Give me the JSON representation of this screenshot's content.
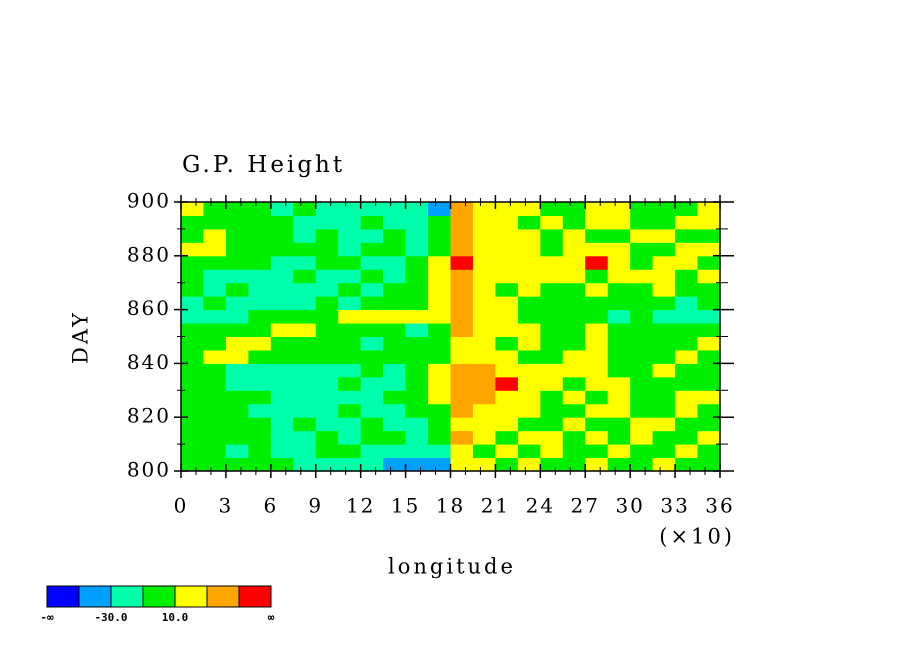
{
  "chart_data": {
    "type": "heatmap",
    "title": "G.P. Height",
    "xlabel": "longitude",
    "ylabel": "DAY",
    "x_scale_note": "(×10)",
    "xlim": [
      0,
      360
    ],
    "ylim": [
      800,
      900
    ],
    "xticks": [
      {
        "value": 0,
        "label": "0"
      },
      {
        "value": 30,
        "label": "3"
      },
      {
        "value": 60,
        "label": "6"
      },
      {
        "value": 90,
        "label": "9"
      },
      {
        "value": 120,
        "label": "12"
      },
      {
        "value": 150,
        "label": "15"
      },
      {
        "value": 180,
        "label": "18"
      },
      {
        "value": 210,
        "label": "21"
      },
      {
        "value": 240,
        "label": "24"
      },
      {
        "value": 270,
        "label": "27"
      },
      {
        "value": 300,
        "label": "30"
      },
      {
        "value": 330,
        "label": "33"
      },
      {
        "value": 360,
        "label": "36"
      }
    ],
    "yticks": [
      800,
      820,
      840,
      860,
      880,
      900
    ],
    "x_bins": [
      0,
      15,
      30,
      45,
      60,
      75,
      90,
      105,
      120,
      135,
      150,
      165,
      180,
      195,
      210,
      225,
      240,
      255,
      270,
      285,
      300,
      315,
      330,
      345,
      360
    ],
    "y_bins": [
      800,
      805,
      810,
      815,
      820,
      825,
      830,
      835,
      840,
      845,
      850,
      855,
      860,
      865,
      870,
      875,
      880,
      885,
      890,
      895,
      900
    ],
    "z": [
      [
        5,
        0,
        -5,
        0,
        -10,
        -15,
        -20,
        -25,
        -30,
        -40,
        -45,
        -35,
        15,
        10,
        5,
        20,
        0,
        5,
        15,
        0,
        5,
        10,
        0,
        5
      ],
      [
        0,
        -5,
        -15,
        -10,
        -20,
        -15,
        -5,
        -10,
        -20,
        -25,
        -30,
        -20,
        25,
        5,
        15,
        0,
        20,
        5,
        0,
        15,
        5,
        0,
        10,
        5
      ],
      [
        -5,
        -10,
        -5,
        0,
        -15,
        -20,
        -10,
        -15,
        -5,
        -10,
        -20,
        -5,
        30,
        15,
        5,
        20,
        10,
        0,
        15,
        5,
        20,
        0,
        5,
        15
      ],
      [
        0,
        5,
        -5,
        -10,
        -15,
        -10,
        -20,
        -15,
        -10,
        -20,
        -15,
        -10,
        20,
        10,
        25,
        5,
        0,
        15,
        5,
        0,
        10,
        15,
        5,
        0
      ],
      [
        -10,
        -5,
        0,
        -15,
        -20,
        -25,
        -15,
        -10,
        -20,
        -15,
        -10,
        0,
        35,
        20,
        15,
        10,
        5,
        0,
        20,
        15,
        0,
        5,
        10,
        5
      ],
      [
        5,
        0,
        -10,
        -5,
        -15,
        -20,
        -25,
        -20,
        -15,
        -10,
        -5,
        10,
        40,
        30,
        15,
        20,
        5,
        10,
        0,
        15,
        5,
        0,
        15,
        10
      ],
      [
        0,
        -5,
        -15,
        -20,
        -25,
        -20,
        -15,
        -10,
        -15,
        -20,
        -10,
        15,
        45,
        35,
        55,
        25,
        15,
        5,
        20,
        10,
        5,
        0,
        5,
        0
      ],
      [
        -5,
        -10,
        -20,
        -15,
        -25,
        -30,
        -20,
        -15,
        -10,
        -15,
        -5,
        10,
        35,
        30,
        25,
        20,
        15,
        25,
        10,
        5,
        0,
        10,
        5,
        -5
      ],
      [
        5,
        10,
        15,
        5,
        -5,
        -10,
        0,
        -5,
        -10,
        -5,
        0,
        5,
        25,
        15,
        10,
        5,
        0,
        10,
        15,
        5,
        0,
        5,
        10,
        0
      ],
      [
        0,
        5,
        20,
        15,
        5,
        0,
        -5,
        -10,
        -15,
        -10,
        -5,
        0,
        20,
        10,
        5,
        15,
        0,
        5,
        10,
        0,
        -5,
        0,
        5,
        10
      ],
      [
        -10,
        -5,
        0,
        5,
        10,
        15,
        5,
        0,
        -5,
        -10,
        -15,
        -5,
        30,
        25,
        15,
        10,
        5,
        0,
        10,
        -5,
        -10,
        0,
        5,
        0
      ],
      [
        -20,
        -25,
        -15,
        -10,
        -5,
        0,
        5,
        10,
        20,
        15,
        20,
        25,
        40,
        20,
        15,
        5,
        0,
        -5,
        -10,
        -15,
        -10,
        -20,
        -15,
        -25
      ],
      [
        -15,
        -10,
        -20,
        -15,
        -25,
        -20,
        -10,
        -15,
        -5,
        -10,
        -5,
        15,
        35,
        15,
        10,
        0,
        5,
        -5,
        0,
        -10,
        -5,
        0,
        -15,
        -10
      ],
      [
        -10,
        -15,
        -5,
        -20,
        -25,
        -15,
        -20,
        -10,
        -15,
        -5,
        -10,
        20,
        45,
        20,
        5,
        10,
        0,
        5,
        15,
        0,
        5,
        10,
        0,
        5
      ],
      [
        -5,
        -15,
        -20,
        -25,
        -15,
        -10,
        -20,
        -15,
        -10,
        -15,
        -5,
        15,
        40,
        25,
        15,
        20,
        10,
        15,
        5,
        20,
        15,
        10,
        5,
        15
      ],
      [
        5,
        0,
        -10,
        -5,
        -15,
        -20,
        -10,
        -5,
        -15,
        -20,
        -10,
        10,
        50,
        25,
        20,
        15,
        25,
        10,
        55,
        15,
        5,
        10,
        20,
        5
      ],
      [
        10,
        15,
        5,
        0,
        -5,
        -10,
        -5,
        -15,
        -10,
        -5,
        -15,
        0,
        30,
        20,
        10,
        15,
        5,
        20,
        15,
        10,
        5,
        0,
        10,
        15
      ],
      [
        0,
        10,
        5,
        -5,
        -10,
        -15,
        -10,
        -20,
        -15,
        -10,
        -20,
        -5,
        35,
        15,
        20,
        10,
        5,
        15,
        0,
        5,
        10,
        15,
        5,
        0
      ],
      [
        5,
        0,
        -5,
        -10,
        -5,
        -15,
        -20,
        -15,
        -10,
        -15,
        -20,
        -10,
        40,
        25,
        15,
        5,
        10,
        0,
        15,
        10,
        0,
        5,
        10,
        15
      ],
      [
        10,
        5,
        0,
        -5,
        -15,
        -10,
        -20,
        -25,
        -20,
        -15,
        -25,
        -40,
        30,
        20,
        10,
        15,
        5,
        0,
        10,
        15,
        5,
        0,
        5,
        10
      ]
    ],
    "colorbar": {
      "bounds": [
        null,
        -50,
        -30,
        -10,
        10,
        30,
        50,
        null
      ],
      "bound_labels": [
        "-∞",
        null,
        "-30.0",
        null,
        "10.0",
        null,
        null,
        "∞"
      ],
      "colors": [
        "#0000ff",
        "#00a0ff",
        "#00ffaa",
        "#00ee00",
        "#ffff00",
        "#ffa500",
        "#ff0000"
      ]
    }
  }
}
